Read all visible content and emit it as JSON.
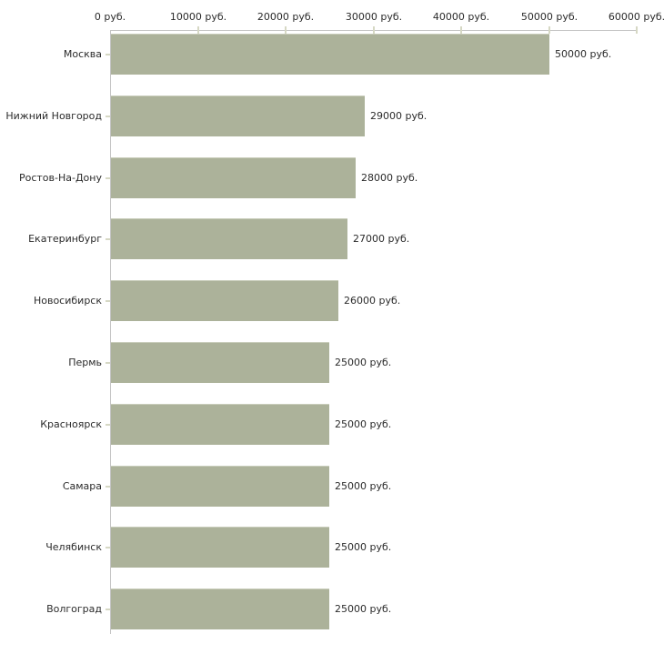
{
  "chart_data": {
    "type": "bar",
    "orientation": "horizontal",
    "title": "",
    "categories": [
      "Москва",
      "Нижний Новгород",
      "Ростов-На-Дону",
      "Екатеринбург",
      "Новосибирск",
      "Пермь",
      "Красноярск",
      "Самара",
      "Челябинск",
      "Волгоград"
    ],
    "values": [
      50000,
      29000,
      28000,
      27000,
      26000,
      25000,
      25000,
      25000,
      25000,
      25000
    ],
    "value_labels": [
      "50000 руб.",
      "29000 руб.",
      "28000 руб.",
      "27000 руб.",
      "26000 руб.",
      "25000 руб.",
      "25000 руб.",
      "25000 руб.",
      "25000 руб.",
      "25000 руб."
    ],
    "x_axis": {
      "position": "top",
      "min": 0,
      "max": 60000,
      "tick_values": [
        0,
        10000,
        20000,
        30000,
        40000,
        50000,
        60000
      ],
      "tick_labels": [
        "0 руб.",
        "10000 руб.",
        "20000 руб.",
        "30000 руб.",
        "40000 руб.",
        "50000 руб.",
        "60000 руб."
      ]
    },
    "grid": "off",
    "legend": "none",
    "colors": {
      "bar": "#acb29a",
      "bar_edge": "#c9cdbb",
      "axis_line": "#c5c5c5",
      "tick_mark": "#d6d8c4",
      "text": "#2b2b2b",
      "background": "#ffffff"
    }
  }
}
